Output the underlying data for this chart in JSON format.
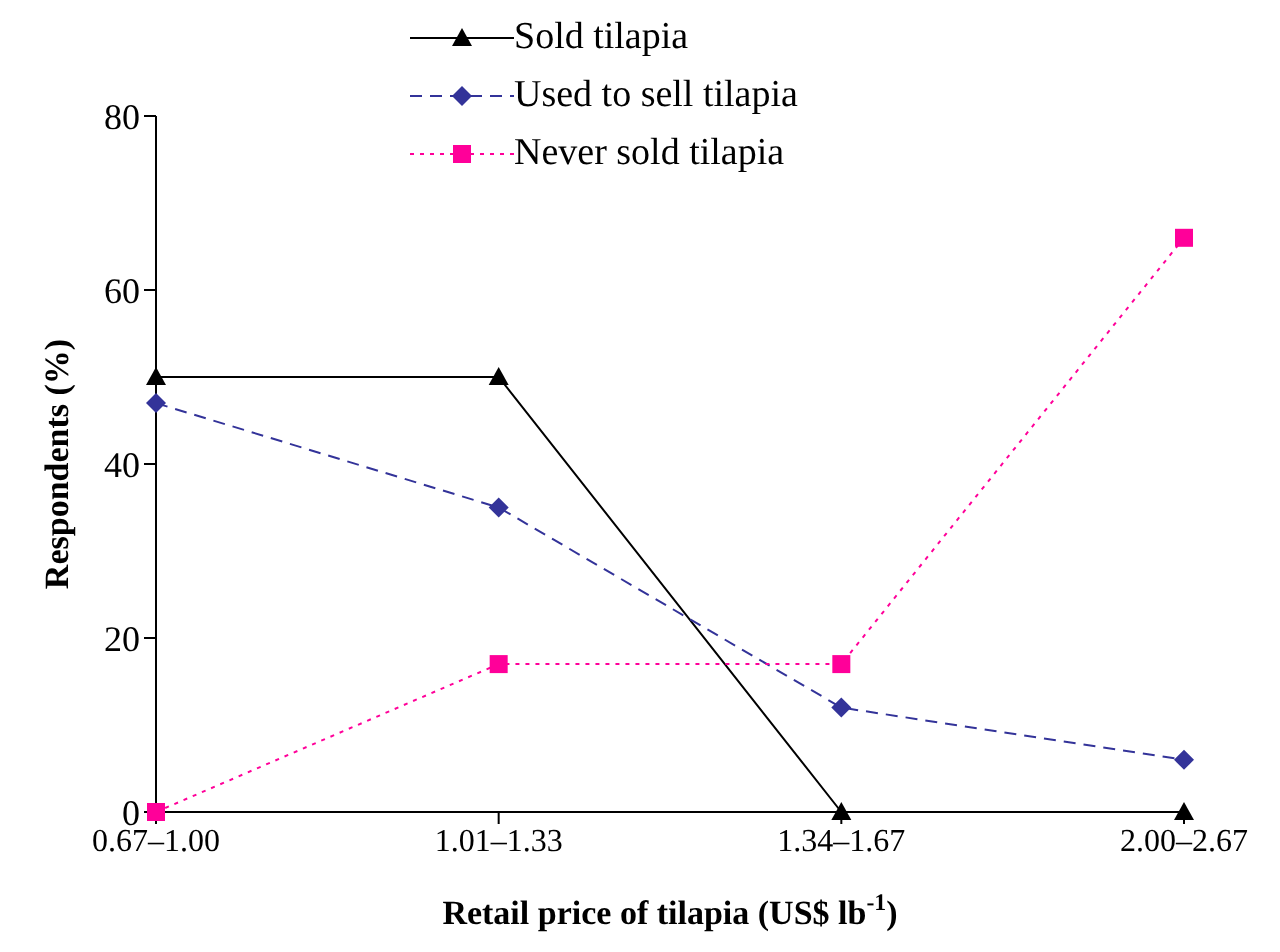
{
  "chart_data": {
    "type": "line",
    "xlabel": "Retail price of tilapia (US$ lb$^{-1}$)",
    "ylabel": "Respondents (%)",
    "categories": [
      "0.67–1.00",
      "1.01–1.33",
      "1.34–1.67",
      "2.00–2.67"
    ],
    "series": [
      {
        "name": "Sold tilapia",
        "color": "#000000",
        "values": [
          50,
          50,
          0,
          0
        ],
        "marker": "triangle",
        "line_style": "solid"
      },
      {
        "name": "Used to sell tilapia",
        "color": "#333399",
        "values": [
          47,
          35,
          12,
          6
        ],
        "marker": "diamond",
        "line_style": "dashed"
      },
      {
        "name": "Never sold tilapia",
        "color": "#ff0099",
        "values": [
          0,
          17,
          17,
          66
        ],
        "marker": "square",
        "line_style": "dotted"
      }
    ],
    "ylim": [
      0,
      80
    ],
    "yticks": [
      0,
      20,
      40,
      60,
      80
    ],
    "grid": false,
    "legend": "top"
  }
}
